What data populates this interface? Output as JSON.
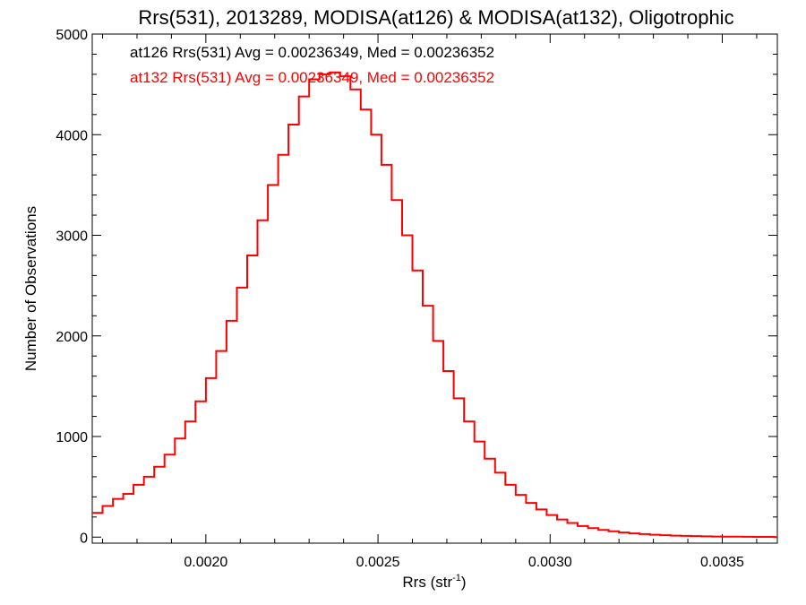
{
  "chart_data": {
    "type": "step",
    "title": "Rrs(531), 2013289, MODISA(at126) & MODISA(at132), Oligotrophic",
    "xlabel": "Rrs (str",
    "xlabel_sup": "-1",
    "xlabel_suffix": ")",
    "ylabel": "Number of Observations",
    "xlim": [
      0.00167,
      0.00366
    ],
    "ylim": [
      -60,
      5000
    ],
    "x_ticks": [
      0.002,
      0.0025,
      0.003,
      0.0035
    ],
    "x_tick_labels": [
      "0.0020",
      "0.0025",
      "0.0030",
      "0.0035"
    ],
    "y_ticks": [
      0,
      1000,
      2000,
      3000,
      4000,
      5000
    ],
    "y_tick_labels": [
      "0",
      "1000",
      "2000",
      "3000",
      "4000",
      "5000"
    ],
    "grid": false,
    "legend_placement": "top-left",
    "annotations": [
      {
        "text": "at126 Rrs(531) Avg = 0.00236349, Med = 0.00236352",
        "color": "#000000"
      },
      {
        "text": "at132 Rrs(531) Avg = 0.00236349, Med = 0.00236352",
        "color": "#ff0000"
      }
    ],
    "series": [
      {
        "color": "#ff0000",
        "x": [
          0.00167,
          0.0017,
          0.00173,
          0.00176,
          0.00179,
          0.00182,
          0.00185,
          0.00188,
          0.00191,
          0.00194,
          0.00197,
          0.002,
          0.00203,
          0.00206,
          0.00209,
          0.00212,
          0.00215,
          0.00218,
          0.00221,
          0.00224,
          0.00227,
          0.0023,
          0.00233,
          0.00236,
          0.00239,
          0.00242,
          0.00245,
          0.00248,
          0.00251,
          0.00254,
          0.00257,
          0.0026,
          0.00263,
          0.00266,
          0.00269,
          0.00272,
          0.00275,
          0.00278,
          0.00281,
          0.00284,
          0.00287,
          0.0029,
          0.00293,
          0.00296,
          0.00299,
          0.00302,
          0.00305,
          0.00308,
          0.00311,
          0.00314,
          0.00317,
          0.0032,
          0.00323,
          0.00326,
          0.00329,
          0.00332,
          0.00335,
          0.00338,
          0.00341,
          0.00344,
          0.00347,
          0.0035,
          0.00353,
          0.00356,
          0.00359,
          0.00362,
          0.00365
        ],
        "y": [
          240,
          310,
          380,
          430,
          520,
          600,
          700,
          820,
          980,
          1150,
          1350,
          1580,
          1850,
          2150,
          2480,
          2800,
          3150,
          3500,
          3800,
          4100,
          4380,
          4550,
          4600,
          4620,
          4580,
          4450,
          4250,
          4000,
          3700,
          3350,
          3000,
          2650,
          2300,
          1950,
          1650,
          1380,
          1150,
          950,
          780,
          640,
          520,
          420,
          340,
          275,
          220,
          175,
          140,
          110,
          90,
          72,
          58,
          46,
          37,
          30,
          24,
          19,
          15,
          12,
          10,
          8,
          6,
          5,
          4,
          3,
          2,
          2,
          1
        ]
      }
    ]
  }
}
